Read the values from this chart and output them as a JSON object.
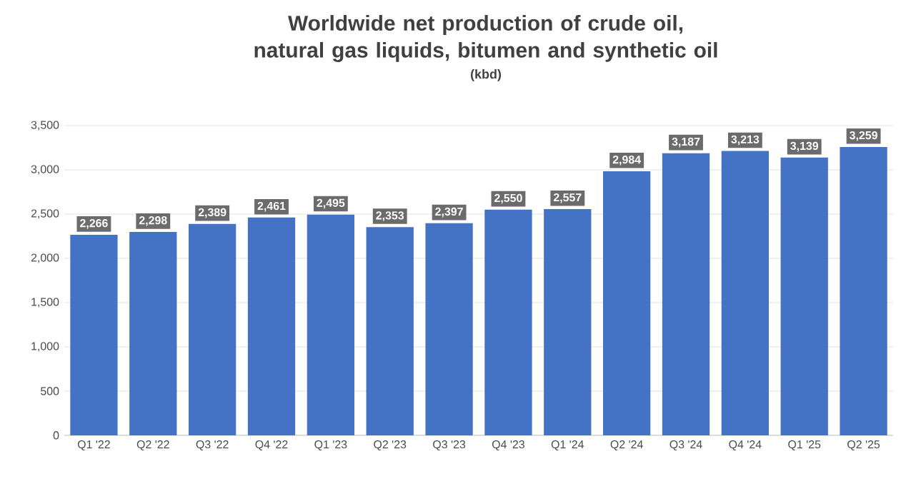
{
  "chart_data": {
    "type": "bar",
    "title": "Worldwide net production of crude oil, natural gas liquids, bitumen and synthetic oil",
    "subtitle": "(kbd)",
    "categories": [
      "Q1 '22",
      "Q2 '22",
      "Q3 '22",
      "Q4 '22",
      "Q1 '23",
      "Q2 '23",
      "Q3 '23",
      "Q4 '23",
      "Q1 '24",
      "Q2 '24",
      "Q3 '24",
      "Q4 '24",
      "Q1 '25",
      "Q2 '25"
    ],
    "values": [
      2266,
      2298,
      2389,
      2461,
      2495,
      2353,
      2397,
      2550,
      2557,
      2984,
      3187,
      3213,
      3139,
      3259
    ],
    "color": "#4472c4",
    "ylim": [
      0,
      3500
    ],
    "yticks": [
      {
        "value": 0,
        "label": "0"
      },
      {
        "value": 500,
        "label": "500"
      },
      {
        "value": 1000,
        "label": "1,000"
      },
      {
        "value": 1500,
        "label": "1,500"
      },
      {
        "value": 2000,
        "label": "2,000"
      },
      {
        "value": 2500,
        "label": "2,500"
      },
      {
        "value": 3000,
        "label": "3,000"
      },
      {
        "value": 3500,
        "label": "3,500"
      }
    ],
    "value_labels": [
      "2,266",
      "2,298",
      "2,389",
      "2,461",
      "2,495",
      "2,353",
      "2,397",
      "2,550",
      "2,557",
      "2,984",
      "3,187",
      "3,213",
      "3,139",
      "3,259"
    ],
    "grid": "y"
  }
}
